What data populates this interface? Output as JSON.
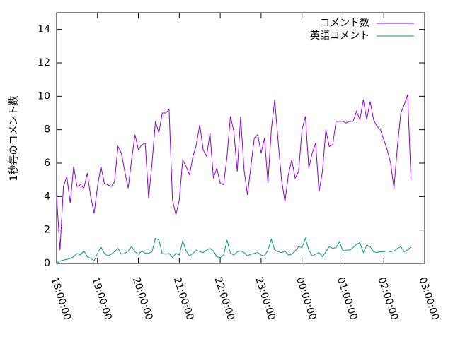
{
  "chart_data": {
    "type": "line",
    "y_label": "1秒毎のコメント数",
    "x": [
      "18:00:00",
      "18:05:00",
      "18:10:00",
      "18:15:00",
      "18:20:00",
      "18:25:00",
      "18:30:00",
      "18:35:00",
      "18:40:00",
      "18:45:00",
      "18:50:00",
      "18:55:00",
      "19:00:00",
      "19:05:00",
      "19:10:00",
      "19:15:00",
      "19:20:00",
      "19:25:00",
      "19:30:00",
      "19:35:00",
      "19:40:00",
      "19:45:00",
      "19:50:00",
      "19:55:00",
      "20:00:00",
      "20:05:00",
      "20:10:00",
      "20:15:00",
      "20:20:00",
      "20:25:00",
      "20:30:00",
      "20:35:00",
      "20:40:00",
      "20:45:00",
      "20:50:00",
      "20:55:00",
      "21:00:00",
      "21:05:00",
      "21:10:00",
      "21:15:00",
      "21:20:00",
      "21:25:00",
      "21:30:00",
      "21:35:00",
      "21:40:00",
      "21:45:00",
      "21:50:00",
      "21:55:00",
      "22:00:00",
      "22:05:00",
      "22:10:00",
      "22:15:00",
      "22:20:00",
      "22:25:00",
      "22:30:00",
      "22:35:00",
      "22:40:00",
      "22:45:00",
      "22:50:00",
      "22:55:00",
      "23:00:00",
      "23:05:00",
      "23:10:00",
      "23:15:00",
      "23:20:00",
      "23:25:00",
      "23:30:00",
      "23:35:00",
      "23:40:00",
      "23:45:00",
      "23:50:00",
      "23:55:00",
      "00:00:00",
      "00:05:00",
      "00:10:00",
      "00:15:00",
      "00:20:00",
      "00:25:00",
      "00:30:00",
      "00:35:00",
      "00:40:00",
      "00:45:00",
      "00:50:00",
      "00:55:00",
      "01:00:00",
      "01:05:00",
      "01:10:00",
      "01:15:00",
      "01:20:00",
      "01:25:00",
      "01:30:00",
      "01:35:00",
      "01:40:00",
      "01:45:00",
      "01:50:00",
      "01:55:00",
      "02:00:00",
      "02:05:00",
      "02:10:00",
      "02:15:00",
      "02:20:00",
      "02:25:00",
      "02:30:00",
      "02:35:00",
      "02:40:00"
    ],
    "series": [
      {
        "name": "コメント数",
        "color": "#9400d3",
        "values": [
          4.0,
          0.8,
          4.6,
          5.2,
          3.6,
          5.8,
          4.6,
          4.7,
          4.5,
          5.4,
          4.0,
          3.0,
          4.6,
          5.8,
          4.8,
          4.7,
          4.6,
          4.9,
          7.0,
          6.6,
          5.5,
          4.5,
          6.2,
          7.7,
          6.8,
          7.1,
          7.2,
          3.9,
          6.0,
          8.5,
          7.8,
          9.0,
          9.0,
          9.2,
          3.8,
          2.9,
          3.8,
          6.2,
          5.8,
          5.3,
          6.4,
          7.1,
          8.3,
          6.8,
          6.4,
          7.8,
          5.1,
          5.7,
          4.8,
          4.7,
          6.4,
          8.8,
          7.9,
          5.5,
          8.8,
          5.6,
          4.1,
          5.8,
          7.5,
          7.7,
          6.6,
          7.5,
          4.8,
          8.0,
          9.8,
          7.3,
          5.0,
          3.7,
          5.3,
          6.2,
          5.1,
          5.5,
          8.0,
          8.8,
          5.7,
          6.6,
          7.2,
          4.3,
          5.5,
          8.0,
          7.0,
          7.1,
          8.5,
          8.5,
          8.5,
          8.4,
          8.5,
          8.5,
          9.1,
          8.6,
          9.8,
          8.6,
          9.7,
          8.6,
          8.2,
          8.0,
          7.4,
          6.8,
          6.0,
          4.5,
          7.0,
          9.0,
          9.5,
          10.1,
          5.0
        ]
      },
      {
        "name": "英語コメント",
        "color": "#009e73",
        "values": [
          0.0,
          0.15,
          0.2,
          0.25,
          0.3,
          0.4,
          0.6,
          0.5,
          0.75,
          0.4,
          0.3,
          0.15,
          0.6,
          1.0,
          0.6,
          0.45,
          0.55,
          0.7,
          0.9,
          0.55,
          0.6,
          0.75,
          1.0,
          0.7,
          0.55,
          0.75,
          0.6,
          0.6,
          0.7,
          1.5,
          1.4,
          0.6,
          0.55,
          0.6,
          0.35,
          0.6,
          0.5,
          1.35,
          0.75,
          0.45,
          0.6,
          0.8,
          0.7,
          0.65,
          0.8,
          0.9,
          0.75,
          0.4,
          0.35,
          0.5,
          1.4,
          0.6,
          0.5,
          0.7,
          0.75,
          0.65,
          0.45,
          0.55,
          0.6,
          0.65,
          0.5,
          0.45,
          0.8,
          1.45,
          0.8,
          0.7,
          0.65,
          0.75,
          0.5,
          0.55,
          0.75,
          1.0,
          0.95,
          1.5,
          0.8,
          0.45,
          0.55,
          0.65,
          0.4,
          0.7,
          1.0,
          0.9,
          0.95,
          1.3,
          0.75,
          0.8,
          0.8,
          0.95,
          1.15,
          1.25,
          0.65,
          1.1,
          1.0,
          0.7,
          0.65,
          0.7,
          0.7,
          0.75,
          0.7,
          0.75,
          0.9,
          1.0,
          0.7,
          0.8,
          1.0
        ]
      }
    ],
    "xlim": [
      "18:00:00",
      "03:00:00"
    ],
    "xticks": [
      "18:00:00",
      "19:00:00",
      "20:00:00",
      "21:00:00",
      "22:00:00",
      "23:00:00",
      "00:00:00",
      "01:00:00",
      "02:00:00",
      "03:00:00"
    ],
    "ylim": [
      0,
      15
    ],
    "yticks": [
      0,
      2,
      4,
      6,
      8,
      10,
      12,
      14
    ],
    "legend": "top-right"
  }
}
